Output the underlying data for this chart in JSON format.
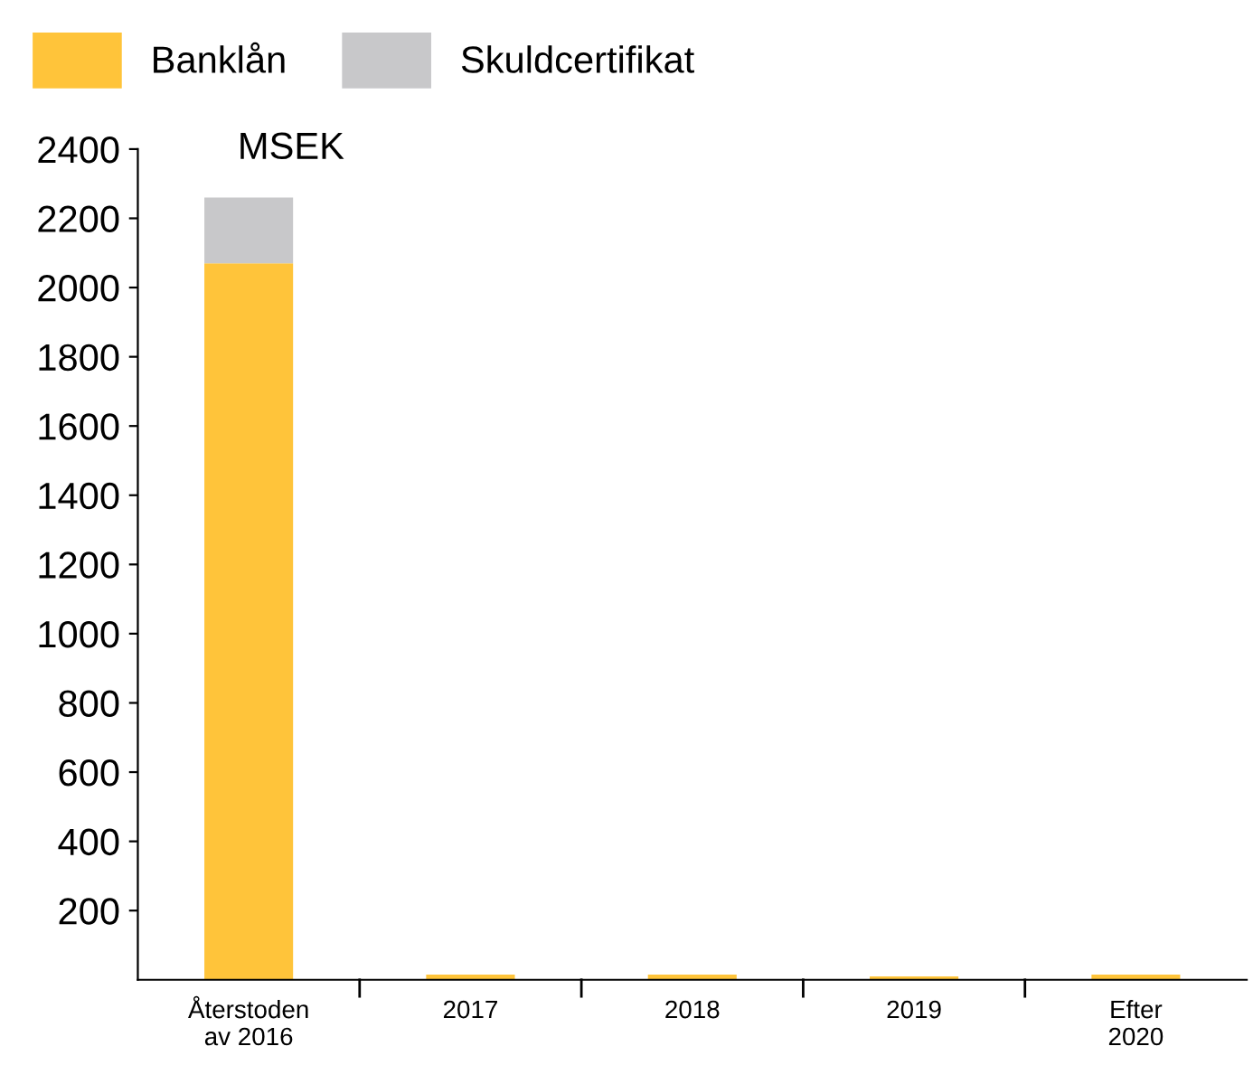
{
  "chart_data": {
    "type": "bar",
    "stacked": true,
    "ylabel": "MSEK",
    "categories": [
      "Återstoden\nav 2016",
      "2017",
      "2018",
      "2019",
      "Efter\n2020"
    ],
    "series": [
      {
        "name": "Banklån",
        "color": "#ffc43a",
        "values": [
          2070,
          15,
          15,
          10,
          15
        ]
      },
      {
        "name": "Skuldcertifikat",
        "color": "#c8c8ca",
        "values": [
          190,
          0,
          0,
          0,
          0
        ]
      }
    ],
    "ylim": [
      0,
      2400
    ],
    "yticks": [
      200,
      400,
      600,
      800,
      1000,
      1200,
      1400,
      1600,
      1800,
      2000,
      2200,
      2400
    ],
    "grid": false,
    "legend": "top left"
  }
}
